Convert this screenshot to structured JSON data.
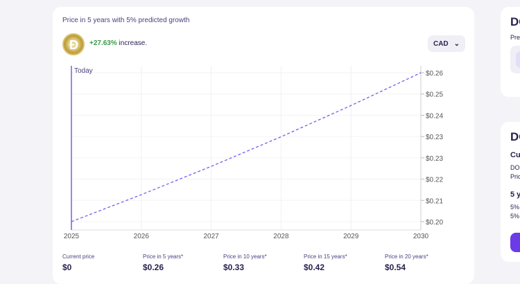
{
  "main": {
    "title": "Price in 5 years with 5% predicted growth",
    "increase_value": "+27.63%",
    "increase_label": "increase.",
    "currency": "CAD",
    "coin_icon": "dogecoin-logo"
  },
  "chart_data": {
    "type": "line",
    "x": [
      2025,
      2026,
      2027,
      2028,
      2029,
      2030
    ],
    "values": [
      0.2037,
      0.2139,
      0.2246,
      0.2358,
      0.2476,
      0.26
    ],
    "ylim": [
      0.2037,
      0.26
    ],
    "x_tick_labels": [
      "2025",
      "2026",
      "2027",
      "2028",
      "2029",
      "2030"
    ],
    "y_tick_labels": [
      "$0.20",
      "$0.21",
      "$0.22",
      "$0.23",
      "$0.23",
      "$0.24",
      "$0.25",
      "$0.26"
    ],
    "annotation": "Today",
    "line_style": "dashed",
    "line_color": "#7a5af0",
    "grid": true
  },
  "stats": [
    {
      "label": "Current price",
      "value": "$0"
    },
    {
      "label": "Price in 5 years*",
      "value": "$0.26"
    },
    {
      "label": "Price in 10 years*",
      "value": "$0.33"
    },
    {
      "label": "Price in 15 years*",
      "value": "$0.42"
    },
    {
      "label": "Price in 20 years*",
      "value": "$0.54"
    }
  ],
  "side": {
    "card1_heading": "DO",
    "card1_text": "Pre",
    "card2_heading": "DO",
    "card2_sub": "Cu",
    "card2_line1": "DOG",
    "card2_line2": "Pric",
    "card2_sub2": "5 y",
    "card2_line3": "5%",
    "card2_line4": "5%"
  }
}
